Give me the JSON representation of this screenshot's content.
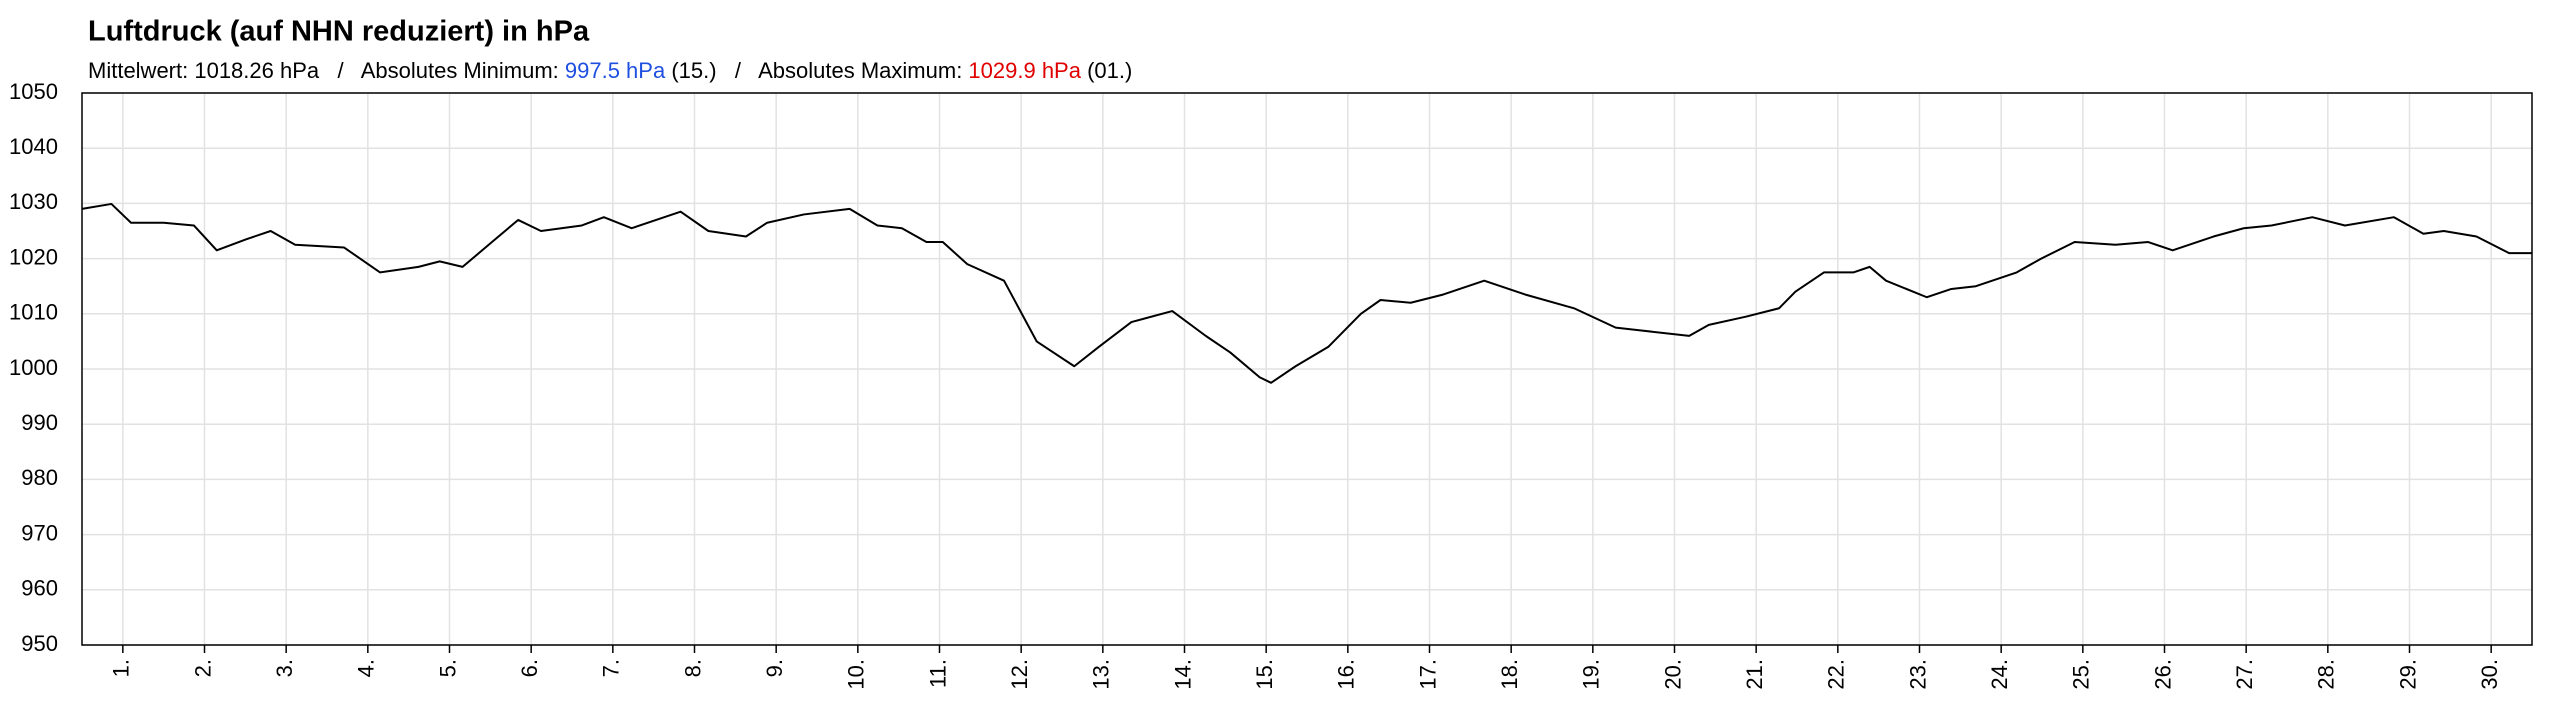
{
  "chart_data": {
    "type": "line",
    "title": "Luftdruck (auf NHN reduziert) in hPa",
    "subtitle_parts": [
      {
        "text": "Mittelwert: 1018.26 hPa   /   Absolutes Minimum: ",
        "color": "#000000"
      },
      {
        "text": "997.5 hPa",
        "color": "#1f4fe0"
      },
      {
        "text": " (15.)   /   Absolutes Maximum: ",
        "color": "#000000"
      },
      {
        "text": "1029.9 hPa",
        "color": "#e00000"
      },
      {
        "text": " (01.)",
        "color": "#000000"
      }
    ],
    "color": "#000000",
    "x": [
      0,
      0.36,
      0.6,
      1.0,
      1.37,
      1.65,
      2.01,
      2.31,
      2.61,
      3.21,
      3.65,
      4.12,
      4.38,
      4.66,
      5.02,
      5.34,
      5.62,
      6.12,
      6.39,
      6.73,
      7.03,
      7.33,
      7.67,
      8.13,
      8.39,
      8.84,
      9.4,
      9.74,
      10.04,
      10.34,
      10.54,
      10.84,
      11.29,
      11.69,
      12.15,
      12.45,
      12.85,
      13.35,
      13.76,
      14.06,
      14.42,
      14.56,
      14.86,
      15.26,
      15.66,
      15.9,
      16.27,
      16.67,
      17.17,
      17.67,
      18.27,
      18.78,
      19.08,
      19.68,
      19.92,
      20.38,
      20.78,
      20.98,
      21.33,
      21.69,
      21.89,
      22.09,
      22.59,
      22.89,
      23.19,
      23.69,
      23.99,
      24.4,
      24.9,
      25.3,
      25.6,
      26.1,
      26.47,
      26.81,
      27.31,
      27.71,
      28.31,
      28.67,
      28.92,
      29.32,
      29.72,
      30
    ],
    "values": [
      1029,
      1029.9,
      1026.5,
      1026.5,
      1026,
      1021.5,
      1023.5,
      1025,
      1022.5,
      1022,
      1017.5,
      1018.5,
      1019.5,
      1018.5,
      1023,
      1027,
      1025,
      1026,
      1027.5,
      1025.5,
      1027,
      1028.5,
      1025,
      1024,
      1026.5,
      1028,
      1029,
      1026,
      1025.5,
      1023,
      1023,
      1019,
      1016,
      1005,
      1000.5,
      1004,
      1008.5,
      1010.5,
      1006,
      1003,
      998.5,
      997.5,
      1000.5,
      1004,
      1010,
      1012.5,
      1012,
      1013.5,
      1016,
      1013.5,
      1011,
      1007.5,
      1007,
      1006,
      1008,
      1009.5,
      1011,
      1014,
      1017.5,
      1017.5,
      1018.5,
      1016,
      1013,
      1014.5,
      1015,
      1017.5,
      1020,
      1023,
      1022.5,
      1023,
      1021.5,
      1024,
      1025.5,
      1026,
      1027.5,
      1026,
      1027.5,
      1024.5,
      1025,
      1024,
      1021,
      1021
    ],
    "xlim": [
      0,
      30
    ],
    "xticks": [
      {
        "value": 0.5,
        "label": "1."
      },
      {
        "value": 1.5,
        "label": "2."
      },
      {
        "value": 2.5,
        "label": "3."
      },
      {
        "value": 3.5,
        "label": "4."
      },
      {
        "value": 4.5,
        "label": "5."
      },
      {
        "value": 5.5,
        "label": "6."
      },
      {
        "value": 6.5,
        "label": "7."
      },
      {
        "value": 7.5,
        "label": "8."
      },
      {
        "value": 8.5,
        "label": "9."
      },
      {
        "value": 9.5,
        "label": "10."
      },
      {
        "value": 10.5,
        "label": "11."
      },
      {
        "value": 11.5,
        "label": "12."
      },
      {
        "value": 12.5,
        "label": "13."
      },
      {
        "value": 13.5,
        "label": "14."
      },
      {
        "value": 14.5,
        "label": "15."
      },
      {
        "value": 15.5,
        "label": "16."
      },
      {
        "value": 16.5,
        "label": "17."
      },
      {
        "value": 17.5,
        "label": "18."
      },
      {
        "value": 18.5,
        "label": "19."
      },
      {
        "value": 19.5,
        "label": "20."
      },
      {
        "value": 20.5,
        "label": "21."
      },
      {
        "value": 21.5,
        "label": "22."
      },
      {
        "value": 22.5,
        "label": "23."
      },
      {
        "value": 23.5,
        "label": "24."
      },
      {
        "value": 24.5,
        "label": "25."
      },
      {
        "value": 25.5,
        "label": "26."
      },
      {
        "value": 26.5,
        "label": "27."
      },
      {
        "value": 27.5,
        "label": "28."
      },
      {
        "value": 28.5,
        "label": "29."
      },
      {
        "value": 29.5,
        "label": "30."
      }
    ],
    "ylim": [
      950,
      1050
    ],
    "yticks": [
      950,
      960,
      970,
      980,
      990,
      1000,
      1010,
      1020,
      1030,
      1040,
      1050
    ],
    "grid": true
  }
}
